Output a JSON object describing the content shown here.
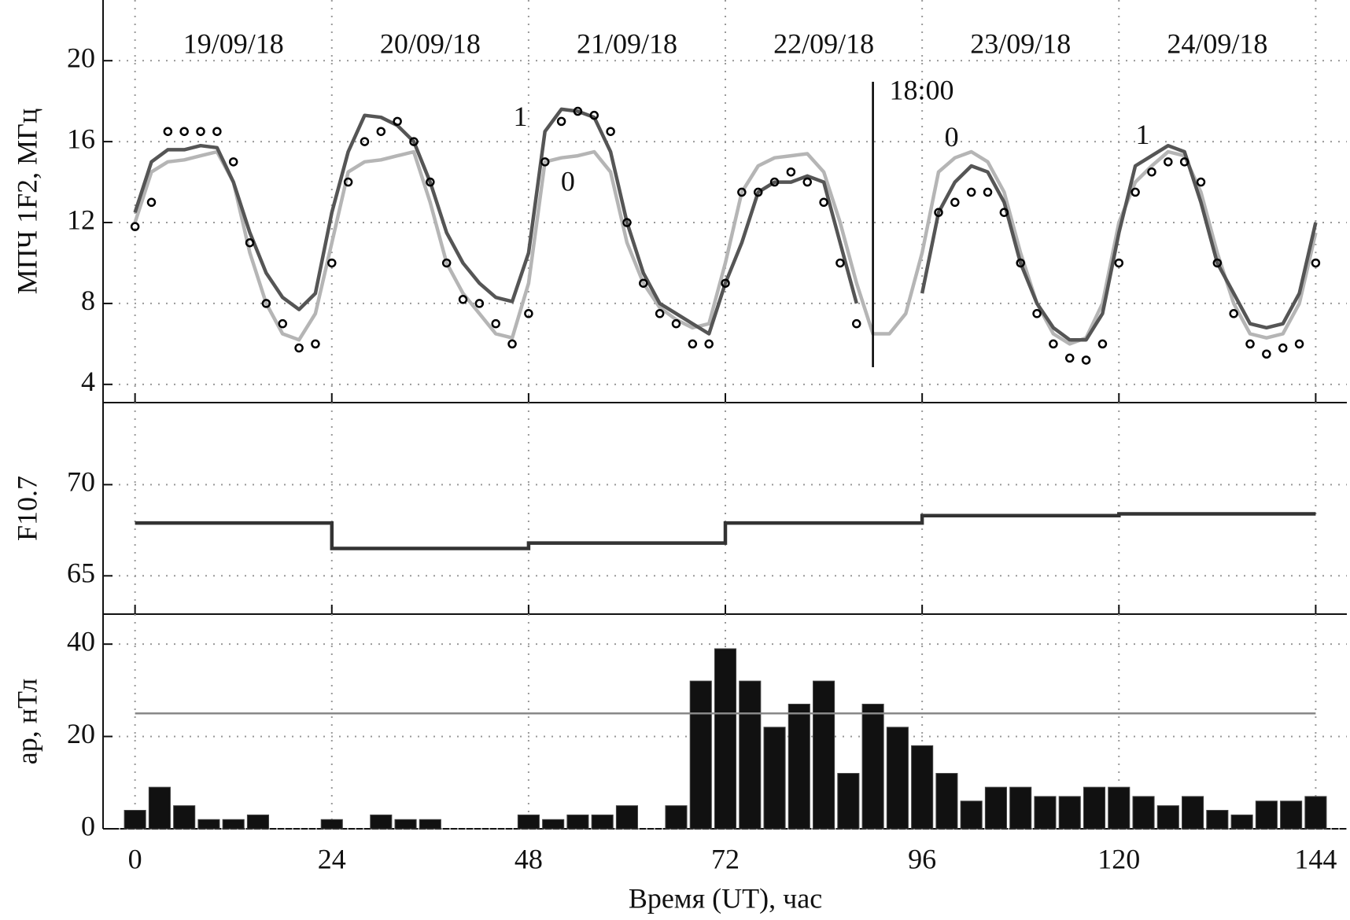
{
  "chart_data": [
    {
      "type": "line",
      "ylabel": "МПЧ 1F2, МГц",
      "xlim": [
        -3.9,
        147.8
      ],
      "ylim": [
        3.1,
        23
      ],
      "xticks": [
        0,
        24,
        48,
        72,
        96,
        120,
        144
      ],
      "yticks": [
        4,
        8,
        12,
        16,
        20
      ],
      "grid": true,
      "marker_x": 90,
      "x": [
        0,
        2,
        4,
        6,
        8,
        10,
        12,
        14,
        16,
        18,
        20,
        22,
        24,
        26,
        28,
        30,
        32,
        34,
        36,
        38,
        40,
        42,
        44,
        46,
        48,
        50,
        52,
        54,
        56,
        58,
        60,
        62,
        64,
        66,
        68,
        70,
        72,
        74,
        76,
        78,
        80,
        82,
        84,
        86,
        88,
        90,
        92,
        94,
        96,
        98,
        100,
        102,
        104,
        106,
        108,
        110,
        112,
        114,
        116,
        118,
        120,
        122,
        124,
        126,
        128,
        130,
        132,
        134,
        136,
        138,
        140,
        142,
        144
      ],
      "series": [
        {
          "color": "#b5b5b5",
          "marker": false,
          "values": [
            12,
            14.5,
            15,
            15.1,
            15.3,
            15.5,
            14,
            10.5,
            8,
            6.5,
            6.2,
            7.5,
            11,
            14.5,
            15,
            15.1,
            15.3,
            15.5,
            13,
            10,
            8.5,
            7.5,
            6.5,
            6.3,
            9,
            15,
            15.2,
            15.3,
            15.5,
            14.5,
            11,
            9,
            7.8,
            7.2,
            6.8,
            7,
            10,
            13.5,
            14.8,
            15.2,
            15.3,
            15.4,
            14.5,
            12,
            9,
            6.5,
            6.5,
            7.5,
            10.5,
            14.5,
            15.2,
            15.5,
            15,
            13.5,
            10.5,
            8,
            6.5,
            6,
            6.3,
            8,
            12,
            14,
            14.8,
            15.5,
            15.3,
            13.5,
            10.5,
            8,
            6.5,
            6.3,
            6.5,
            8,
            11.5
          ]
        },
        {
          "color": "#555555",
          "marker": false,
          "values": [
            12.5,
            15,
            15.6,
            15.6,
            15.8,
            15.7,
            14,
            11.5,
            9.5,
            8.3,
            7.7,
            8.5,
            12.5,
            15.5,
            17.3,
            17.2,
            16.8,
            16,
            14,
            11.5,
            10,
            9,
            8.3,
            8.1,
            10.5,
            16.5,
            17.6,
            17.5,
            17.2,
            15.5,
            12,
            9.5,
            8,
            7.5,
            7,
            6.5,
            9,
            11,
            13.5,
            14,
            14,
            14.3,
            14,
            11,
            8,
            null,
            null,
            null,
            8.5,
            12.5,
            14,
            14.8,
            14.5,
            13,
            10,
            8,
            6.8,
            6.2,
            6.2,
            7.5,
            11.5,
            14.8,
            15.3,
            15.8,
            15.5,
            13,
            10,
            8.5,
            7,
            6.8,
            7,
            8.5,
            12
          ]
        },
        {
          "color": "#000000",
          "marker": true,
          "values": [
            11.8,
            13,
            16.5,
            16.5,
            16.5,
            16.5,
            15,
            11,
            8,
            7,
            5.8,
            6,
            10,
            14,
            16,
            16.5,
            17,
            16,
            14,
            10,
            8.2,
            8,
            7,
            6,
            7.5,
            15,
            17,
            17.5,
            17.3,
            16.5,
            12,
            9,
            7.5,
            7,
            6,
            6,
            9,
            13.5,
            13.5,
            14,
            14.5,
            14,
            13,
            10,
            7,
            null,
            null,
            null,
            null,
            12.5,
            13,
            13.5,
            13.5,
            12.5,
            10,
            7.5,
            6,
            5.3,
            5.2,
            6,
            10,
            13.5,
            14.5,
            15,
            15,
            14,
            10,
            7.5,
            6,
            5.5,
            5.8,
            6,
            10
          ]
        }
      ],
      "annotations": [
        {
          "text": "19/09/18",
          "x": 12,
          "y": 20.7
        },
        {
          "text": "20/09/18",
          "x": 36,
          "y": 20.7
        },
        {
          "text": "21/09/18",
          "x": 60,
          "y": 20.7
        },
        {
          "text": "22/09/18",
          "x": 84,
          "y": 20.7
        },
        {
          "text": "23/09/18",
          "x": 108,
          "y": 20.7
        },
        {
          "text": "24/09/18",
          "x": 132,
          "y": 20.7
        },
        {
          "text": "18:00",
          "x": 92,
          "y": 18.4,
          "anchor": "start"
        },
        {
          "text": "1",
          "x": 47,
          "y": 17.1
        },
        {
          "text": "0",
          "x": 52.8,
          "y": 13.9
        },
        {
          "text": "0",
          "x": 99.6,
          "y": 16.1
        },
        {
          "text": "1",
          "x": 122.9,
          "y": 16.2
        }
      ]
    },
    {
      "type": "step",
      "ylabel": "F10.7",
      "xlim": [
        -3.9,
        147.8
      ],
      "ylim": [
        62.9,
        74.5
      ],
      "xticks": [
        0,
        24,
        48,
        72,
        96,
        120,
        144
      ],
      "yticks": [
        65,
        70
      ],
      "grid": true,
      "color": "#333333",
      "x": [
        0,
        24,
        48,
        72,
        96,
        120
      ],
      "values": [
        67.9,
        66.5,
        66.8,
        67.9,
        68.3,
        68.4
      ]
    },
    {
      "type": "bar",
      "ylabel": "ap, нТл",
      "xlabel": "Время (UT), час",
      "xlim": [
        -3.9,
        147.8
      ],
      "ylim": [
        0,
        46.5
      ],
      "xticks": [
        0,
        24,
        48,
        72,
        96,
        120,
        144
      ],
      "yticks": [
        0,
        20,
        40
      ],
      "grid": true,
      "show_xtick_labels": true,
      "color": "#111111",
      "hline": 25,
      "x": [
        0,
        3,
        6,
        9,
        12,
        15,
        18,
        21,
        24,
        27,
        30,
        33,
        36,
        39,
        42,
        45,
        48,
        51,
        54,
        57,
        60,
        63,
        66,
        69,
        72,
        75,
        78,
        81,
        84,
        87,
        90,
        93,
        96,
        99,
        102,
        105,
        108,
        111,
        114,
        117,
        120,
        123,
        126,
        129,
        132,
        135,
        138,
        141,
        144
      ],
      "values": [
        4,
        9,
        5,
        2,
        2,
        3,
        0,
        0,
        2,
        0,
        3,
        2,
        2,
        0,
        0,
        0,
        3,
        2,
        3,
        3,
        5,
        0,
        5,
        32,
        39,
        32,
        22,
        27,
        32,
        12,
        27,
        22,
        18,
        12,
        6,
        9,
        9,
        7,
        7,
        9,
        9,
        7,
        5,
        7,
        4,
        3,
        6,
        6,
        7
      ]
    }
  ]
}
